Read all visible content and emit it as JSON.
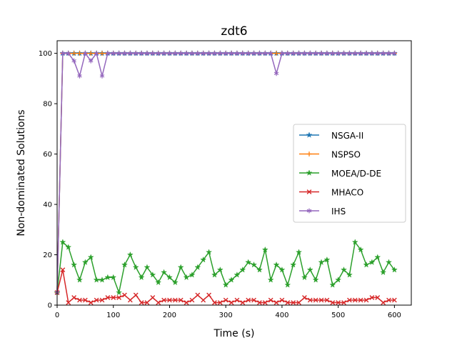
{
  "chart_data": {
    "type": "line",
    "title": "zdt6",
    "xlabel": "Time (s)",
    "ylabel": "Non-dominated Solutions",
    "xlim": [
      0,
      630
    ],
    "ylim": [
      0,
      105
    ],
    "xticks": [
      0,
      100,
      200,
      300,
      400,
      500,
      600
    ],
    "yticks": [
      0,
      20,
      40,
      60,
      80,
      100
    ],
    "legend_position": "center-right",
    "x": [
      0,
      10,
      20,
      30,
      40,
      50,
      60,
      70,
      80,
      90,
      100,
      110,
      120,
      130,
      140,
      150,
      160,
      170,
      180,
      190,
      200,
      210,
      220,
      230,
      240,
      250,
      260,
      270,
      280,
      290,
      300,
      310,
      320,
      330,
      340,
      350,
      360,
      370,
      380,
      390,
      400,
      410,
      420,
      430,
      440,
      450,
      460,
      470,
      480,
      490,
      500,
      510,
      520,
      530,
      540,
      550,
      560,
      570,
      580,
      590,
      600
    ],
    "series": [
      {
        "name": "NSGA-II",
        "color": "#1f77b4",
        "marker": "star",
        "values": [
          5,
          100,
          100,
          100,
          100,
          100,
          100,
          100,
          100,
          100,
          100,
          100,
          100,
          100,
          100,
          100,
          100,
          100,
          100,
          100,
          100,
          100,
          100,
          100,
          100,
          100,
          100,
          100,
          100,
          100,
          100,
          100,
          100,
          100,
          100,
          100,
          100,
          100,
          100,
          100,
          100,
          100,
          100,
          100,
          100,
          100,
          100,
          100,
          100,
          100,
          100,
          100,
          100,
          100,
          100,
          100,
          100,
          100,
          100,
          100,
          100
        ]
      },
      {
        "name": "NSPSO",
        "color": "#ff7f0e",
        "marker": "plus",
        "values": [
          5,
          100,
          100,
          100,
          100,
          100,
          100,
          100,
          100,
          100,
          100,
          100,
          100,
          100,
          100,
          100,
          100,
          100,
          100,
          100,
          100,
          100,
          100,
          100,
          100,
          100,
          100,
          100,
          100,
          100,
          100,
          100,
          100,
          100,
          100,
          100,
          100,
          100,
          100,
          100,
          100,
          100,
          100,
          100,
          100,
          100,
          100,
          100,
          100,
          100,
          100,
          100,
          100,
          100,
          100,
          100,
          100,
          100,
          100,
          100,
          100
        ]
      },
      {
        "name": "MOEA/D-DE",
        "color": "#2ca02c",
        "marker": "star",
        "values": [
          5,
          25,
          23,
          16,
          10,
          17,
          19,
          10,
          10,
          11,
          11,
          5,
          16,
          20,
          15,
          11,
          15,
          12,
          9,
          13,
          11,
          9,
          15,
          11,
          12,
          15,
          18,
          21,
          12,
          14,
          8,
          10,
          12,
          14,
          17,
          16,
          14,
          22,
          10,
          16,
          14,
          8,
          16,
          21,
          11,
          14,
          10,
          17,
          18,
          8,
          10,
          14,
          12,
          25,
          22,
          16,
          17,
          19,
          13,
          17,
          14
        ]
      },
      {
        "name": "MHACO",
        "color": "#d62728",
        "marker": "x",
        "values": [
          5,
          14,
          1,
          3,
          2,
          2,
          1,
          2,
          2,
          3,
          3,
          3,
          4,
          2,
          4,
          1,
          1,
          3,
          1,
          2,
          2,
          2,
          2,
          1,
          2,
          4,
          2,
          4,
          1,
          1,
          2,
          1,
          2,
          1,
          2,
          2,
          1,
          1,
          2,
          1,
          2,
          1,
          1,
          1,
          3,
          2,
          2,
          2,
          2,
          1,
          1,
          1,
          2,
          2,
          2,
          2,
          3,
          3,
          1,
          2,
          2
        ]
      },
      {
        "name": "IHS",
        "color": "#9467bd",
        "marker": "asterisk",
        "values": [
          5,
          100,
          100,
          97,
          91,
          100,
          97,
          100,
          91,
          100,
          100,
          100,
          100,
          100,
          100,
          100,
          100,
          100,
          100,
          100,
          100,
          100,
          100,
          100,
          100,
          100,
          100,
          100,
          100,
          100,
          100,
          100,
          100,
          100,
          100,
          100,
          100,
          100,
          100,
          92,
          100,
          100,
          100,
          100,
          100,
          100,
          100,
          100,
          100,
          100,
          100,
          100,
          100,
          100,
          100,
          100,
          100,
          100,
          100,
          100,
          100
        ]
      }
    ]
  }
}
